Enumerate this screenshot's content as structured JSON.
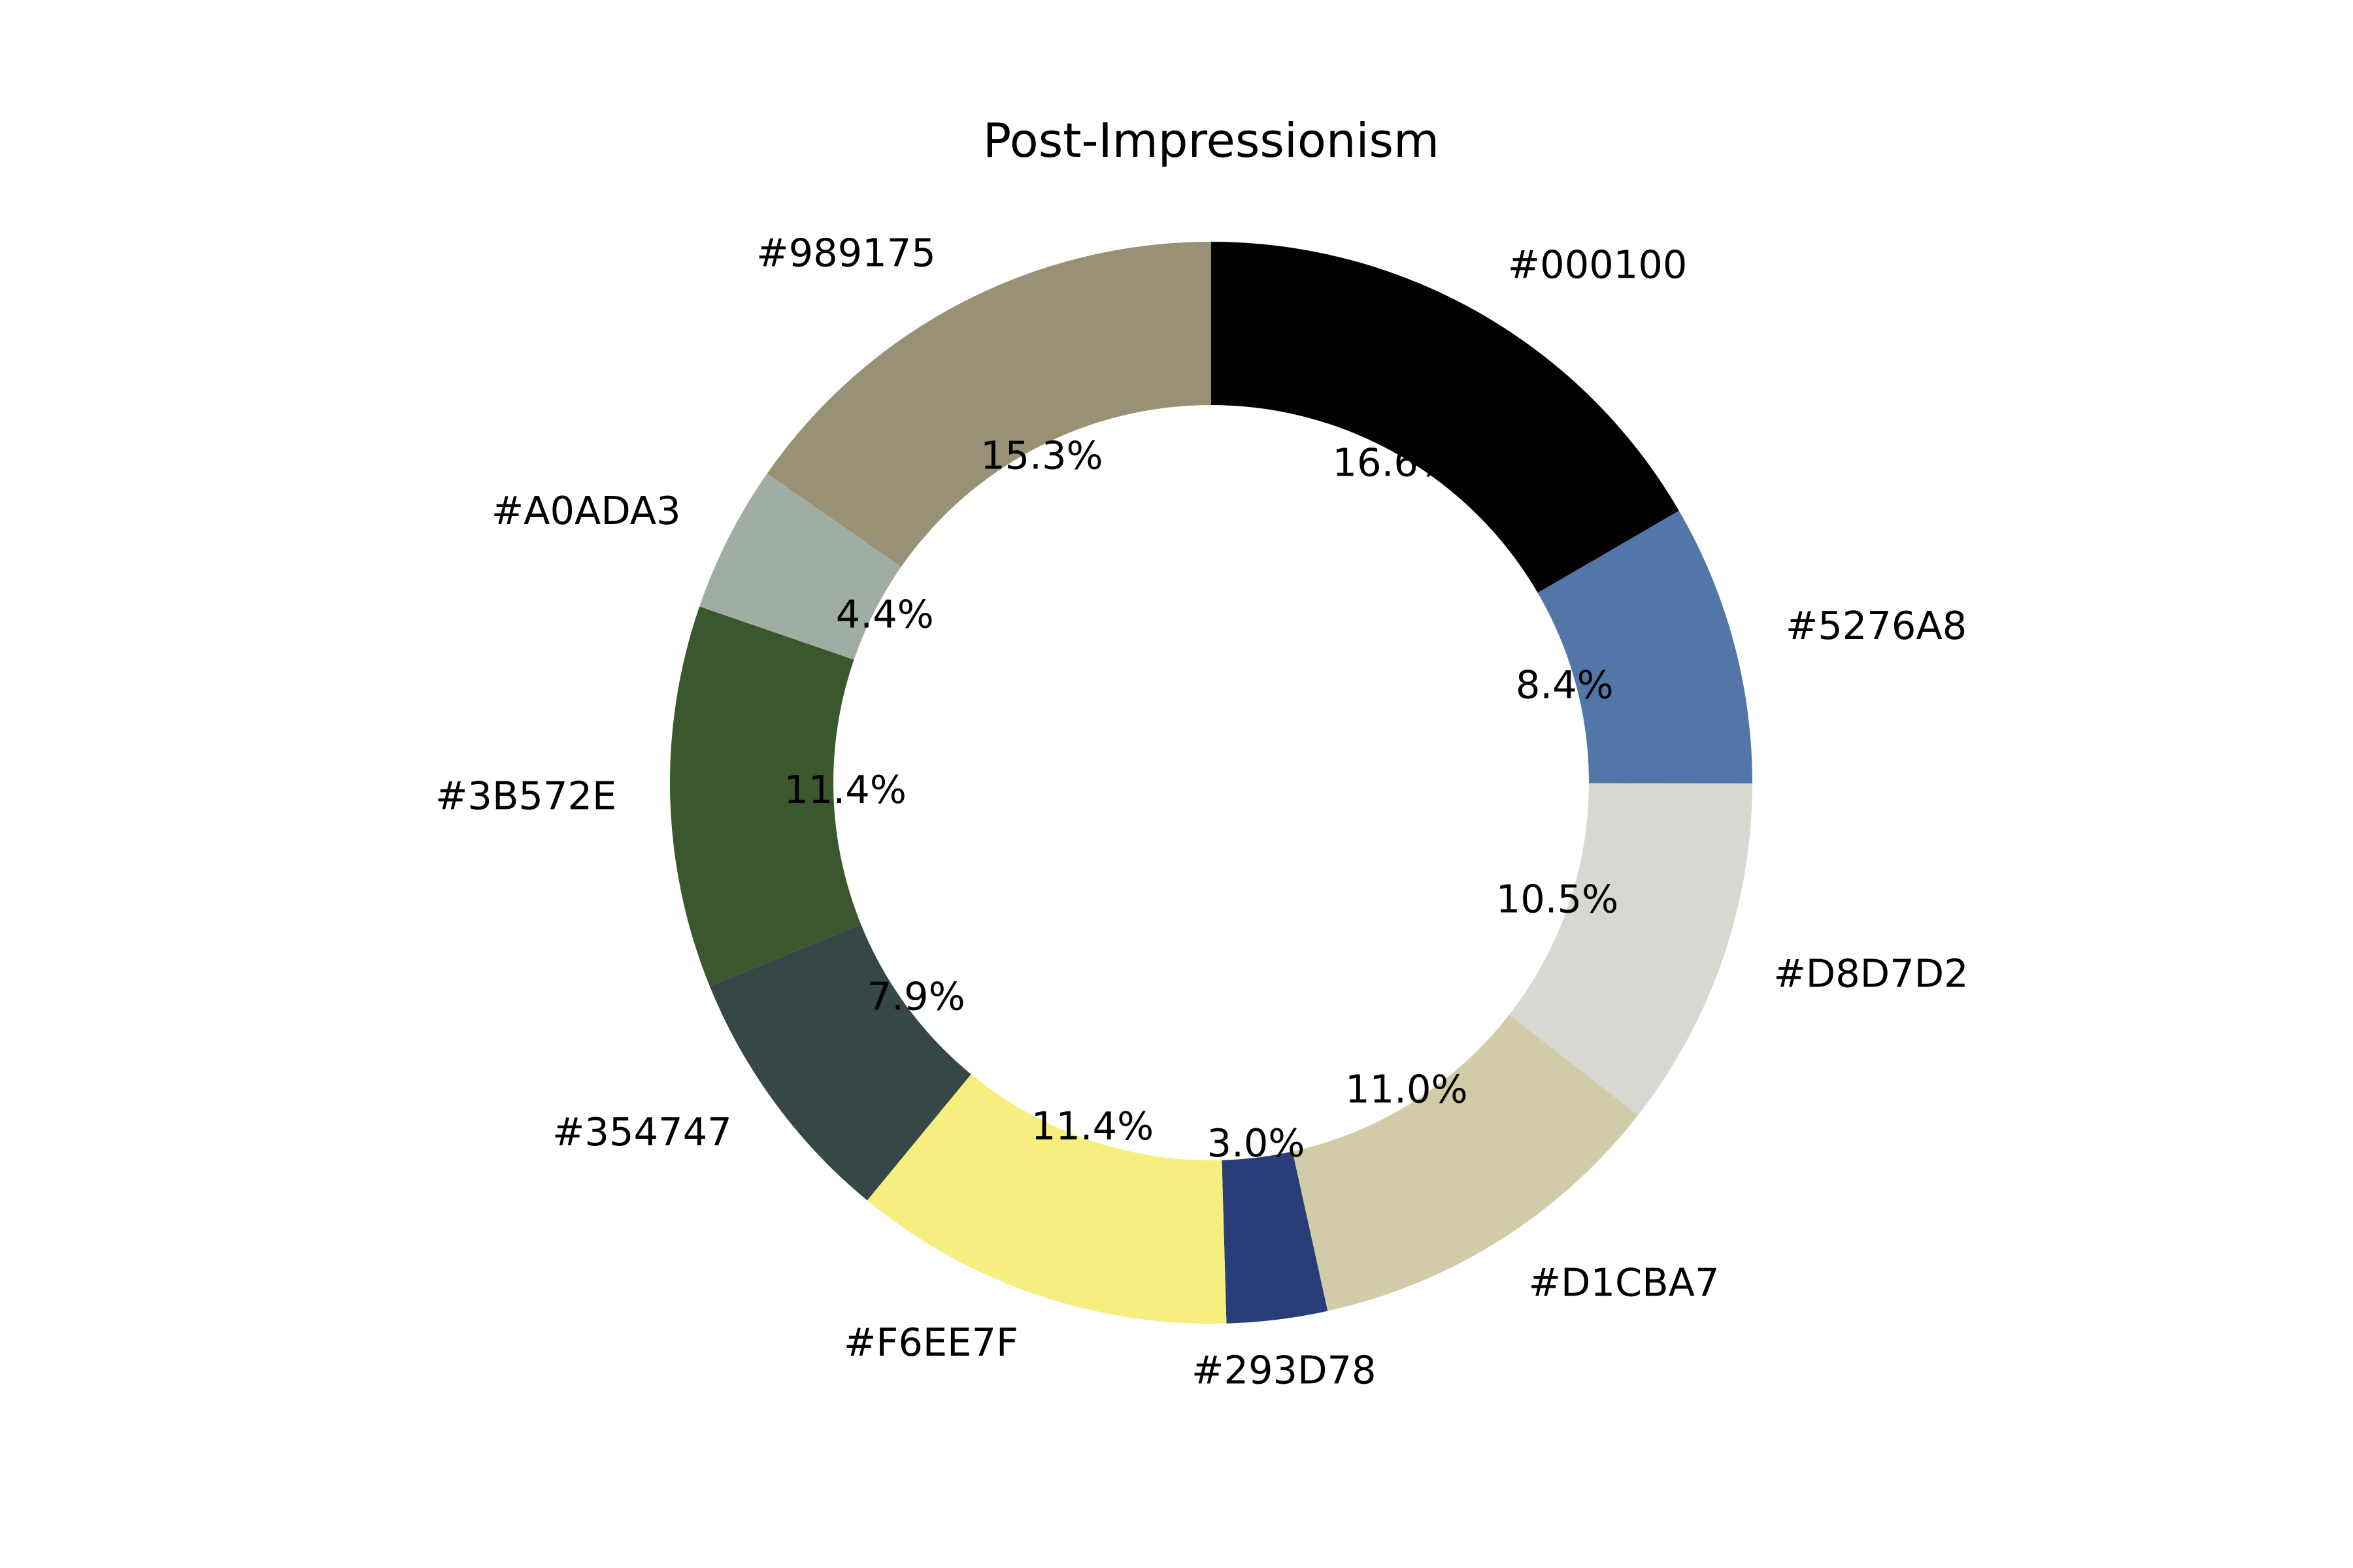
{
  "chart_data": {
    "type": "pie",
    "style": "donut",
    "title": "Post-Impressionism",
    "categories": [
      "#000100",
      "#5276A8",
      "#D8D7D2",
      "#D1CBA7",
      "#293D78",
      "#F6EE7F",
      "#354747",
      "#3B572E",
      "#A0ADA3",
      "#989175"
    ],
    "values": [
      16.6,
      8.4,
      10.5,
      11.0,
      3.0,
      11.4,
      7.9,
      11.4,
      4.4,
      15.3
    ],
    "value_labels": [
      "16.6%",
      "8.4%",
      "10.5%",
      "11.0%",
      "3.0%",
      "11.4%",
      "7.9%",
      "11.4%",
      "4.4%",
      "15.3%"
    ],
    "colors": [
      "#000100",
      "#5276A8",
      "#D8D7D2",
      "#D1CBA7",
      "#293D78",
      "#F6EE7F",
      "#354747",
      "#3B572E",
      "#A0ADA3",
      "#989175"
    ],
    "start_angle": "top",
    "direction": "clockwise",
    "legend": "none"
  }
}
